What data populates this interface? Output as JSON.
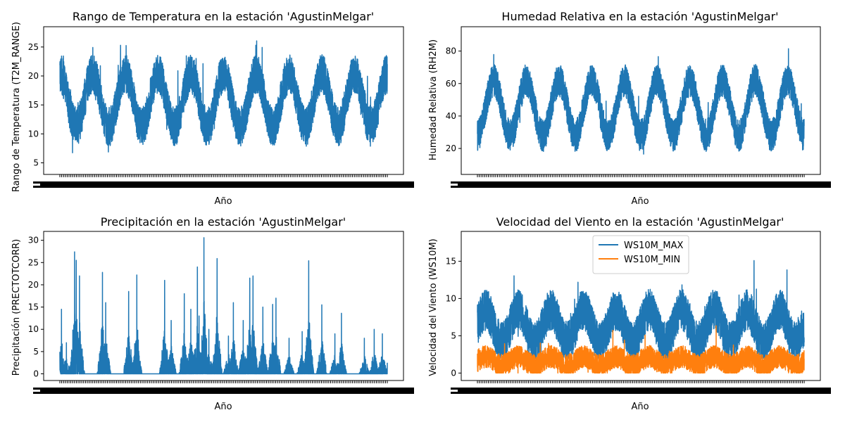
{
  "chart_data": [
    {
      "type": "line",
      "title": "Rango de Temperatura en la estación 'AgustinMelgar'",
      "xlabel": "Año",
      "ylabel": "Rango de Temperatura (T2M_RANGE)",
      "ylim": [
        3,
        28.5
      ],
      "yticks": [
        5,
        10,
        15,
        20,
        25
      ],
      "legend": null,
      "series": [
        {
          "color": "#1f77b4",
          "n": 4400,
          "seasonal": {
            "cycles": 10,
            "base": 15.8,
            "amp": 4.6,
            "noise": 3.4,
            "min": 4.2,
            "max": 27.8,
            "phase": 0.25
          }
        }
      ]
    },
    {
      "type": "line",
      "title": "Humedad Relativa en la estación 'AgustinMelgar'",
      "xlabel": "Año",
      "ylabel": "Humedad Relativa (RH2M)",
      "ylim": [
        4,
        95
      ],
      "yticks": [
        20,
        40,
        60,
        80
      ],
      "legend": null,
      "series": [
        {
          "color": "#1f77b4",
          "n": 4400,
          "seasonal": {
            "cycles": 10,
            "base": 45,
            "amp": 17,
            "noise": 10,
            "min": 7,
            "max": 90,
            "phase": -0.25
          }
        }
      ]
    },
    {
      "type": "line",
      "title": "Precipitación en la estación 'AgustinMelgar'",
      "xlabel": "Año",
      "ylabel": "Precipitación (PRECTOTCORR)",
      "ylim": [
        -1.5,
        32
      ],
      "yticks": [
        0,
        5,
        10,
        15,
        20,
        25,
        30
      ],
      "legend": null,
      "series": [
        {
          "color": "#1f77b4",
          "n": 4400,
          "peaks": [
            [
              0.0,
              3
            ],
            [
              0.005,
              14.5
            ],
            [
              0.02,
              7
            ],
            [
              0.045,
              27.4
            ],
            [
              0.05,
              25.5
            ],
            [
              0.06,
              22
            ],
            [
              0.13,
              22.8
            ],
            [
              0.14,
              16
            ],
            [
              0.21,
              18.5
            ],
            [
              0.235,
              22.2
            ],
            [
              0.32,
              21
            ],
            [
              0.34,
              12
            ],
            [
              0.38,
              18
            ],
            [
              0.4,
              14.5
            ],
            [
              0.42,
              24
            ],
            [
              0.425,
              13
            ],
            [
              0.44,
              30.6
            ],
            [
              0.455,
              10
            ],
            [
              0.48,
              25.9
            ],
            [
              0.515,
              8.5
            ],
            [
              0.53,
              16
            ],
            [
              0.56,
              12
            ],
            [
              0.58,
              21.5
            ],
            [
              0.59,
              22
            ],
            [
              0.62,
              15
            ],
            [
              0.65,
              15.6
            ],
            [
              0.66,
              17
            ],
            [
              0.7,
              8
            ],
            [
              0.74,
              9.5
            ],
            [
              0.76,
              25.4
            ],
            [
              0.8,
              15.5
            ],
            [
              0.84,
              9
            ],
            [
              0.86,
              13.6
            ],
            [
              0.93,
              8
            ],
            [
              0.96,
              10
            ],
            [
              0.985,
              9
            ],
            [
              1.0,
              2.5
            ]
          ]
        }
      ]
    },
    {
      "type": "line",
      "title": "Velocidad del Viento en la estación 'AgustinMelgar'",
      "xlabel": "Año",
      "ylabel": "Velocidad del Viento (WS10M)",
      "ylim": [
        -1,
        19
      ],
      "yticks": [
        0,
        5,
        10,
        15
      ],
      "legend": "upper center",
      "series": [
        {
          "name": "WS10M_MAX",
          "color": "#1f77b4",
          "n": 4400,
          "seasonal": {
            "cycles": 10,
            "base": 6.3,
            "amp": 2.2,
            "noise": 2.8,
            "min": 2,
            "max": 16.5,
            "phase": 0.0
          }
        },
        {
          "name": "WS10M_MIN",
          "color": "#ff7f0e",
          "n": 4400,
          "seasonal": {
            "cycles": 10,
            "base": 1.6,
            "amp": 0.6,
            "noise": 1.5,
            "min": 0,
            "max": 6.8,
            "phase": 0.0
          }
        }
      ]
    }
  ]
}
